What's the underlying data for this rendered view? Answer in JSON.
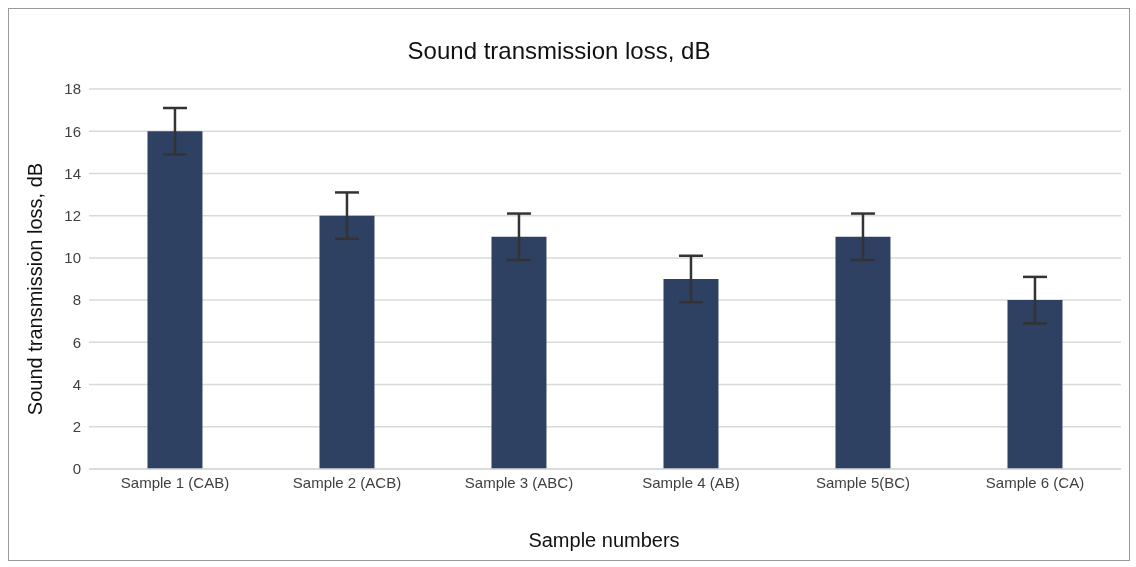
{
  "chart_data": {
    "type": "bar",
    "title": "Sound transmission loss, dB",
    "xlabel": "Sample numbers",
    "ylabel": "Sound transmission loss, dB",
    "categories": [
      "Sample 1 (CAB)",
      "Sample 2 (ACB)",
      "Sample 3 (ABC)",
      "Sample 4 (AB)",
      "Sample 5(BC)",
      "Sample 6 (CA)"
    ],
    "values": [
      16,
      12,
      11,
      9,
      11,
      8
    ],
    "errors": [
      1.1,
      1.1,
      1.1,
      1.1,
      1.1,
      1.1
    ],
    "color": "#2e4163",
    "ylim": [
      0,
      18
    ],
    "yticks": [
      0,
      2,
      4,
      6,
      8,
      10,
      12,
      14,
      16,
      18
    ],
    "grid": "y"
  }
}
